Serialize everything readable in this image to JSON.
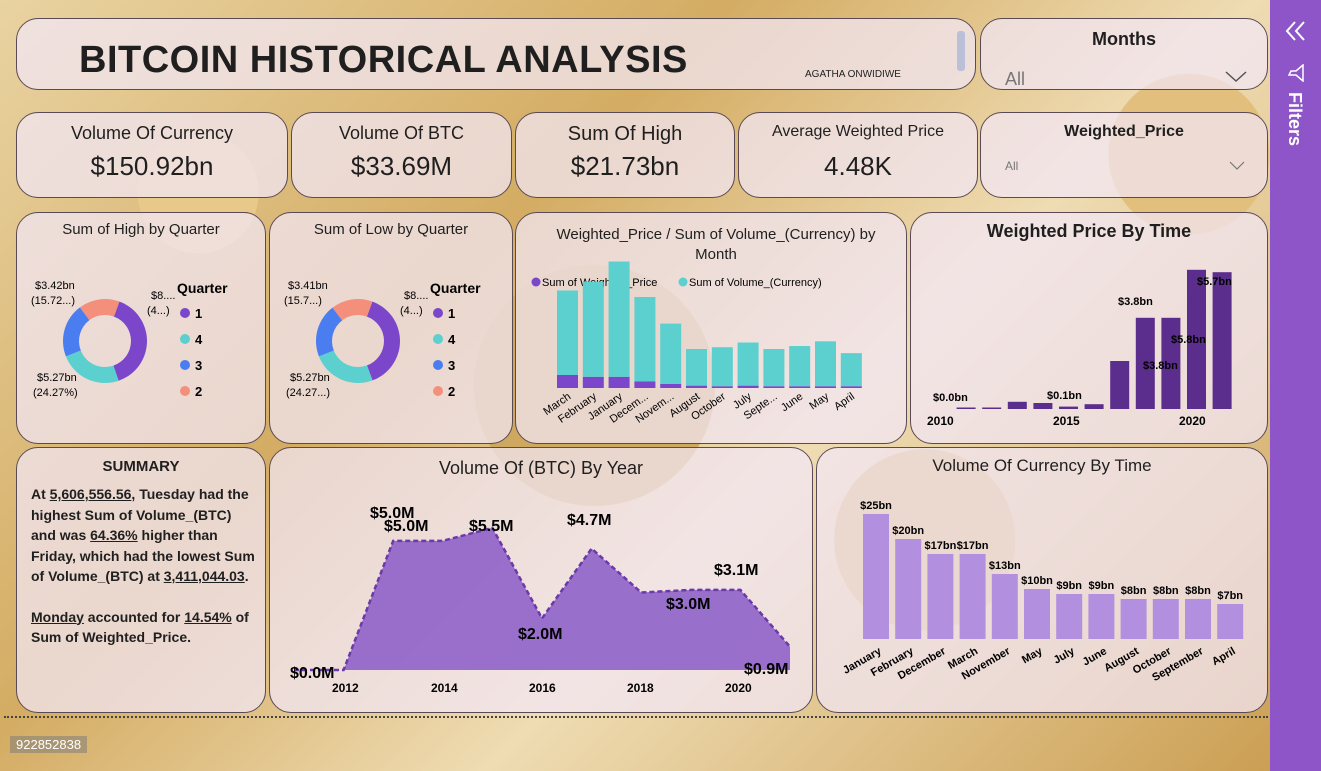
{
  "header": {
    "title": "BITCOIN HISTORICAL ANALYSIS",
    "author": "AGATHA ONWIDIWE"
  },
  "slicers": {
    "months": {
      "label": "Months",
      "value": "All"
    },
    "weighted_price": {
      "label": "Weighted_Price",
      "value": "All"
    }
  },
  "kpis": [
    {
      "title": "Volume Of Currency",
      "value": "$150.92bn"
    },
    {
      "title": "Volume Of BTC",
      "value": "$33.69M"
    },
    {
      "title": "Sum Of High",
      "value": "$21.73bn"
    },
    {
      "title": "Average Weighted Price",
      "value": "4.48K"
    }
  ],
  "filters_pane": {
    "label": "Filters"
  },
  "footer": {
    "id_text": "922852838"
  },
  "summary": {
    "title": "SUMMARY",
    "p1_a": "At ",
    "p1_b": "5,606,556.56",
    "p1_c": ", Tuesday had the highest Sum of Volume_(BTC) and was ",
    "p1_d": "64.36%",
    "p1_e": " higher than Friday, which had the lowest Sum of Volume_(BTC) at ",
    "p1_f": "3,411,044.03",
    "p1_g": ".",
    "p2_a": "Monday",
    "p2_b": " accounted for ",
    "p2_c": "14.54%",
    "p2_d": " of Sum of Weighted_Price."
  },
  "colors": {
    "purple": "#7b46c9",
    "teal": "#5ccfcf",
    "blue": "#4a7df0",
    "salmon": "#f48f7c",
    "dark_purple": "#5b2d8c",
    "light_purple": "#b38fe0",
    "area_purple": "#8a5ac8",
    "filters_bg": "#8e55c9"
  },
  "chart_data": [
    {
      "id": "high_by_quarter",
      "type": "pie",
      "title": "Sum of High by Quarter",
      "legend_title": "Quarter",
      "categories": [
        "1",
        "4",
        "3",
        "2"
      ],
      "values": [
        8.5,
        5.27,
        4.5,
        3.42
      ],
      "labels": [
        {
          "text": "$3.42bn",
          "sub": "(15.72...)"
        },
        {
          "text": "$8....",
          "sub": "(4...)"
        },
        {
          "text": "$5.27bn",
          "sub": "(24.27%)"
        }
      ]
    },
    {
      "id": "low_by_quarter",
      "type": "pie",
      "title": "Sum of Low by Quarter",
      "legend_title": "Quarter",
      "categories": [
        "1",
        "4",
        "3",
        "2"
      ],
      "values": [
        8.3,
        5.27,
        4.4,
        3.41
      ],
      "labels": [
        {
          "text": "$3.41bn",
          "sub": "(15.7...)"
        },
        {
          "text": "$8....",
          "sub": "(4...)"
        },
        {
          "text": "$5.27bn",
          "sub": "(24.27...)"
        }
      ]
    },
    {
      "id": "wp_volume_by_month",
      "type": "bar",
      "title": "Weighted_Price / Sum of Volume_(Currency) by Month",
      "categories": [
        "March",
        "February",
        "January",
        "Decem...",
        "Novem...",
        "August",
        "October",
        "July",
        "Septe...",
        "June",
        "May",
        "April"
      ],
      "series": [
        {
          "name": "Sum of Weighted_Price",
          "values": [
            2.2,
            1.9,
            1.9,
            1.1,
            0.7,
            0.4,
            0.3,
            0.4,
            0.3,
            0.3,
            0.3,
            0.3
          ]
        },
        {
          "name": "Sum of Volume_(Currency)",
          "values": [
            14.3,
            16.1,
            19.5,
            14.3,
            10.2,
            6.2,
            6.6,
            7.3,
            6.3,
            6.8,
            7.6,
            5.6
          ]
        }
      ],
      "ylim": [
        0,
        22
      ]
    },
    {
      "id": "weighted_price_by_time",
      "type": "bar",
      "title": "Weighted Price By Time",
      "x": [
        2010,
        2011,
        2012,
        2013,
        2014,
        2015,
        2016,
        2017,
        2018,
        2019,
        2020,
        2021
      ],
      "values": [
        0.0,
        0.02,
        0.05,
        0.3,
        0.25,
        0.1,
        0.2,
        2.0,
        3.8,
        3.8,
        5.8,
        5.7
      ],
      "data_labels": [
        "$0.0bn",
        "",
        "",
        "",
        "",
        "$0.1bn",
        "",
        "",
        "$3.8bn",
        "$3.8bn",
        "$5.8bn",
        "$5.7bn"
      ],
      "xticks": [
        "2010",
        "2015",
        "2020"
      ],
      "ylim": [
        0,
        6
      ]
    },
    {
      "id": "btc_volume_by_year",
      "type": "area",
      "title": "Volume Of (BTC) By Year",
      "x": [
        2011,
        2012,
        2013,
        2014,
        2015,
        2016,
        2017,
        2018,
        2019,
        2020,
        2021
      ],
      "values": [
        0.0,
        0.0,
        5.0,
        5.0,
        5.5,
        2.0,
        4.7,
        3.0,
        3.1,
        3.1,
        0.9
      ],
      "data_labels": [
        "$0.0M",
        "",
        "$5.0M",
        "$5.0M",
        "$5.5M",
        "$2.0M",
        "$4.7M",
        "$3.0M",
        "$3.1M",
        "",
        "$0.9M"
      ],
      "xticks": [
        "2012",
        "2014",
        "2016",
        "2018",
        "2020"
      ],
      "ylim": [
        0,
        6
      ]
    },
    {
      "id": "currency_volume_by_time",
      "type": "bar",
      "title": "Volume Of Currency By Time",
      "categories": [
        "January",
        "February",
        "December",
        "March",
        "November",
        "May",
        "July",
        "June",
        "August",
        "October",
        "September",
        "April"
      ],
      "values": [
        25,
        20,
        17,
        17,
        13,
        10,
        9,
        9,
        8,
        8,
        8,
        7
      ],
      "data_labels": [
        "$25bn",
        "$20bn",
        "$17bn",
        "$17bn",
        "$13bn",
        "$10bn",
        "$9bn",
        "$9bn",
        "$8bn",
        "$8bn",
        "$8bn",
        "$7bn"
      ],
      "ylim": [
        0,
        27
      ]
    }
  ]
}
